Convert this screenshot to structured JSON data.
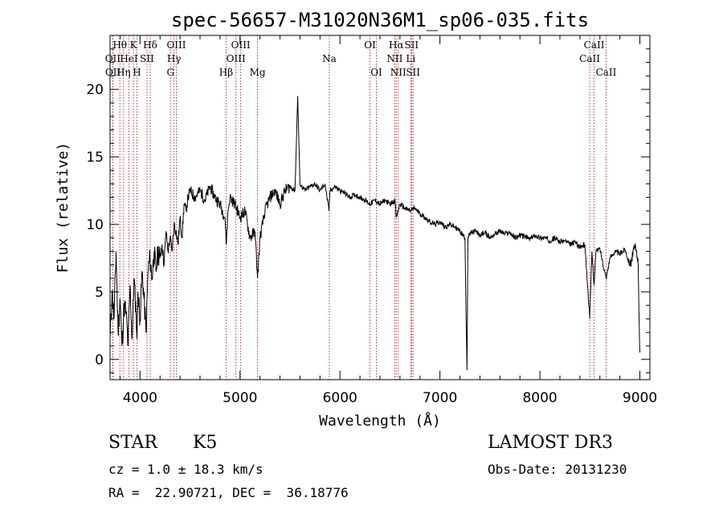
{
  "chart_data": {
    "type": "line",
    "title": "spec-56657-M31020N36M1_sp06-035.fits",
    "xlabel": "Wavelength (Å)",
    "ylabel": "Flux (relative)",
    "xlim": [
      3700,
      9100
    ],
    "ylim": [
      -1.5,
      24.0
    ],
    "xticks": [
      4000,
      5000,
      6000,
      7000,
      8000,
      9000
    ],
    "yticks": [
      0,
      5,
      10,
      15,
      20
    ],
    "grid": false,
    "series": [
      {
        "name": "flux",
        "x": [
          3700,
          3720,
          3740,
          3760,
          3780,
          3800,
          3820,
          3840,
          3860,
          3880,
          3900,
          3920,
          3940,
          3960,
          3970,
          3980,
          4000,
          4020,
          4040,
          4060,
          4080,
          4100,
          4120,
          4140,
          4160,
          4180,
          4200,
          4220,
          4240,
          4260,
          4280,
          4300,
          4320,
          4340,
          4360,
          4380,
          4400,
          4420,
          4440,
          4460,
          4480,
          4500,
          4550,
          4600,
          4650,
          4700,
          4750,
          4800,
          4850,
          4861,
          4880,
          4900,
          4950,
          5000,
          5050,
          5100,
          5150,
          5175,
          5200,
          5250,
          5300,
          5350,
          5400,
          5450,
          5500,
          5550,
          5577,
          5600,
          5650,
          5700,
          5750,
          5800,
          5850,
          5890,
          5900,
          5950,
          6000,
          6050,
          6100,
          6150,
          6200,
          6250,
          6300,
          6350,
          6400,
          6450,
          6500,
          6550,
          6563,
          6600,
          6650,
          6700,
          6750,
          6800,
          6850,
          6900,
          6950,
          7000,
          7050,
          7100,
          7150,
          7200,
          7250,
          7270,
          7280,
          7300,
          7350,
          7400,
          7450,
          7500,
          7550,
          7600,
          7650,
          7700,
          7750,
          7800,
          7850,
          7900,
          7950,
          8000,
          8050,
          8100,
          8150,
          8200,
          8250,
          8300,
          8350,
          8400,
          8450,
          8498,
          8520,
          8542,
          8560,
          8600,
          8662,
          8700,
          8750,
          8800,
          8850,
          8900,
          8950,
          8980,
          9000
        ],
        "y": [
          1.5,
          5.0,
          3.0,
          8.0,
          2.0,
          4.5,
          1.0,
          4.0,
          3.5,
          1.0,
          5.5,
          1.5,
          6.0,
          3.5,
          1.5,
          5.0,
          3.0,
          6.5,
          4.5,
          2.0,
          6.5,
          7.5,
          6.0,
          8.0,
          6.5,
          8.0,
          7.5,
          8.5,
          7.0,
          9.5,
          8.0,
          9.0,
          8.0,
          10.0,
          9.5,
          8.5,
          10.5,
          9.0,
          11.5,
          11.0,
          12.0,
          12.5,
          12.0,
          12.5,
          11.8,
          12.8,
          12.0,
          11.5,
          10.5,
          8.5,
          11.0,
          12.0,
          11.5,
          10.5,
          11.0,
          9.0,
          9.5,
          6.0,
          9.0,
          11.0,
          12.0,
          12.5,
          11.5,
          12.5,
          12.8,
          12.5,
          19.5,
          13.0,
          12.5,
          12.8,
          13.0,
          12.5,
          13.0,
          11.0,
          12.5,
          12.8,
          12.5,
          12.3,
          12.0,
          12.2,
          12.0,
          11.8,
          11.5,
          11.8,
          11.5,
          11.8,
          11.5,
          11.8,
          10.5,
          11.5,
          11.2,
          11.0,
          11.2,
          10.8,
          10.5,
          10.2,
          10.0,
          10.2,
          9.8,
          10.0,
          9.8,
          9.5,
          9.0,
          -0.8,
          9.0,
          9.3,
          9.5,
          9.2,
          9.4,
          9.0,
          9.3,
          9.5,
          9.3,
          9.4,
          9.0,
          9.2,
          9.1,
          8.9,
          9.2,
          9.0,
          9.0,
          8.8,
          9.0,
          8.7,
          8.8,
          8.5,
          8.7,
          8.3,
          8.5,
          3.0,
          8.0,
          5.5,
          8.0,
          8.2,
          6.0,
          7.5,
          8.0,
          7.8,
          8.2,
          7.0,
          8.3,
          7.5,
          0.5
        ]
      }
    ],
    "line_markers": [
      {
        "label": "Hθ",
        "lambda": 3798,
        "row": 1
      },
      {
        "label": "OII",
        "lambda": 3727,
        "row": 2
      },
      {
        "label": "OII",
        "lambda": 3729,
        "row": 3
      },
      {
        "label": "HeI",
        "lambda": 3889,
        "row": 2
      },
      {
        "label": "Hη",
        "lambda": 3835,
        "row": 3
      },
      {
        "label": "K",
        "lambda": 3934,
        "row": 1
      },
      {
        "label": "H",
        "lambda": 3969,
        "row": 3
      },
      {
        "label": "SII",
        "lambda": 4069,
        "row": 2
      },
      {
        "label": "Hδ",
        "lambda": 4102,
        "row": 1
      },
      {
        "label": "OIII",
        "lambda": 4363,
        "row": 1
      },
      {
        "label": "Hγ",
        "lambda": 4340,
        "row": 2
      },
      {
        "label": "G",
        "lambda": 4305,
        "row": 3
      },
      {
        "label": "Hβ",
        "lambda": 4861,
        "row": 3
      },
      {
        "label": "OIII",
        "lambda": 5007,
        "row": 1
      },
      {
        "label": "OIII",
        "lambda": 4959,
        "row": 2
      },
      {
        "label": "Mg",
        "lambda": 5175,
        "row": 3
      },
      {
        "label": "Na",
        "lambda": 5893,
        "row": 2
      },
      {
        "label": "OI",
        "lambda": 6300,
        "row": 1
      },
      {
        "label": "OI",
        "lambda": 6364,
        "row": 3
      },
      {
        "label": "Hα",
        "lambda": 6563,
        "row": 1
      },
      {
        "label": "NII",
        "lambda": 6548,
        "row": 2
      },
      {
        "label": "NII",
        "lambda": 6583,
        "row": 3
      },
      {
        "label": "SII",
        "lambda": 6716,
        "row": 1
      },
      {
        "label": "Li",
        "lambda": 6708,
        "row": 2
      },
      {
        "label": "SII",
        "lambda": 6731,
        "row": 3
      },
      {
        "label": "CaII",
        "lambda": 8542,
        "row": 1
      },
      {
        "label": "CaII",
        "lambda": 8498,
        "row": 2
      },
      {
        "label": "CaII",
        "lambda": 8662,
        "row": 3
      }
    ]
  },
  "info": {
    "object_class": "STAR",
    "subclass": "K5",
    "survey": "LAMOST DR3",
    "cz": "cz = 1.0 ± 18.3 km/s",
    "obs_date": "Obs-Date: 20131230",
    "coords": "RA =  22.90721, DEC =  36.18776"
  },
  "colors": {
    "marker_line": "#b22222",
    "spectrum": "#000000"
  }
}
